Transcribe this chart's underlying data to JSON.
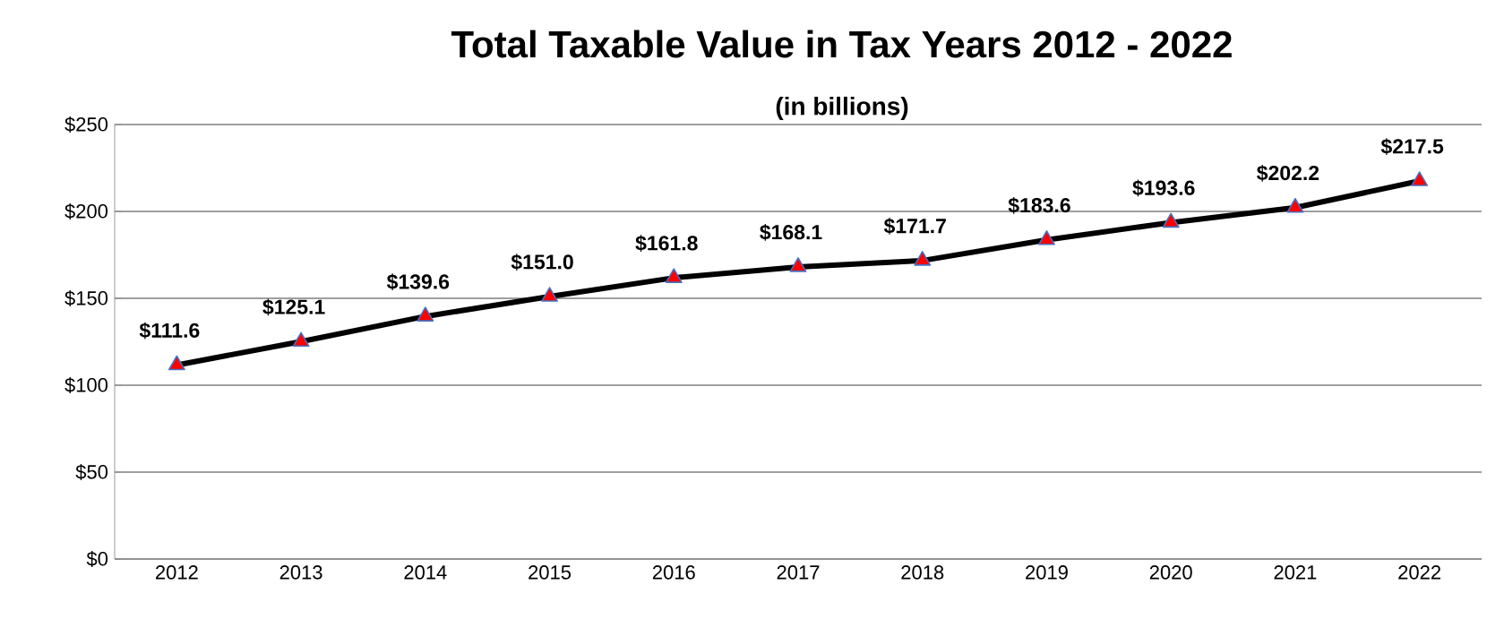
{
  "chart_data": {
    "type": "line",
    "title": "Total Taxable Value in Tax Years 2012 - 2022",
    "subtitle": "(in billions)",
    "categories": [
      "2012",
      "2013",
      "2014",
      "2015",
      "2016",
      "2017",
      "2018",
      "2019",
      "2020",
      "2021",
      "2022"
    ],
    "series": [
      {
        "color": "#000000",
        "values": [
          111.6,
          125.1,
          139.6,
          151.0,
          161.8,
          168.1,
          171.7,
          183.6,
          193.6,
          202.2,
          217.5
        ],
        "value_labels": [
          "$111.6",
          "$125.1",
          "$139.6",
          "$151.0",
          "$161.8",
          "$168.1",
          "$171.7",
          "$183.6",
          "$193.6",
          "$202.2",
          "$217.5"
        ]
      }
    ],
    "ylim": [
      0,
      250
    ],
    "yticks": [
      {
        "value": 0,
        "label": "$0"
      },
      {
        "value": 50,
        "label": "$50"
      },
      {
        "value": 100,
        "label": "$100"
      },
      {
        "value": 150,
        "label": "$150"
      },
      {
        "value": 200,
        "label": "$200"
      },
      {
        "value": 250,
        "label": "$250"
      }
    ],
    "grid": "y",
    "marker": "triangle",
    "line_style": "solid"
  }
}
